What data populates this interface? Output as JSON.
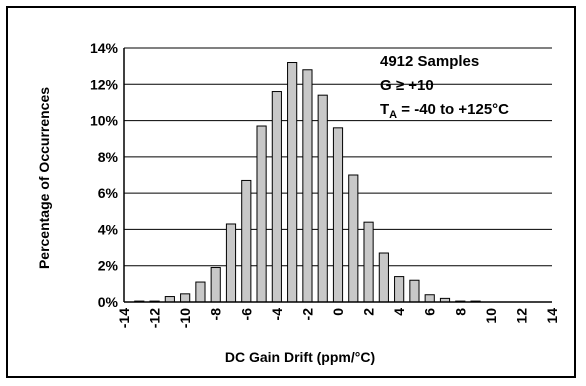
{
  "chart_data": {
    "type": "bar",
    "title": "",
    "xlabel": "DC Gain Drift (ppm/°C)",
    "ylabel": "Percentage of Occurrences",
    "ylim": [
      0,
      14
    ],
    "xlim": [
      -14,
      14
    ],
    "y_ticks": [
      "0%",
      "2%",
      "4%",
      "6%",
      "8%",
      "10%",
      "12%",
      "14%"
    ],
    "x_ticks": [
      "-14",
      "-12",
      "-10",
      "-8",
      "-6",
      "-4",
      "-2",
      "0",
      "2",
      "4",
      "6",
      "8",
      "10",
      "12",
      "14"
    ],
    "grid": "horizontal",
    "bar_color": "#c8c8c8",
    "x": [
      -13,
      -12,
      -11,
      -10,
      -9,
      -8,
      -7,
      -6,
      -5,
      -4,
      -3,
      -2,
      -1,
      0,
      1,
      2,
      3,
      4,
      5,
      6,
      7,
      8,
      9
    ],
    "values": [
      0.05,
      0.05,
      0.3,
      0.45,
      1.1,
      1.9,
      4.3,
      6.7,
      9.7,
      11.6,
      13.2,
      12.8,
      11.4,
      9.6,
      7.0,
      4.4,
      2.7,
      1.4,
      1.2,
      0.4,
      0.2,
      0.05,
      0.05
    ],
    "annotations": {
      "samples": "4912 Samples",
      "gain": "G ≥ +10",
      "ta_prefix": "T",
      "ta_sub": "A",
      "ta_rest": " = -40 to +125°C"
    }
  }
}
